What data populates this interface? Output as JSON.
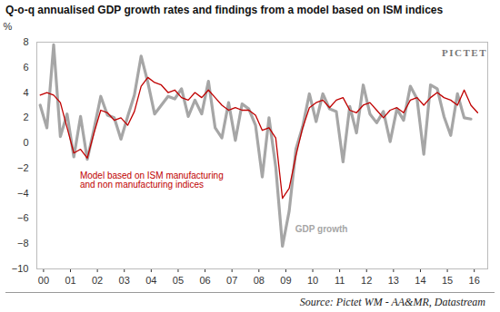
{
  "chart_data": {
    "type": "line",
    "title": "Q-o-q annualised GDP growth rates and findings from a model based on ISM indices",
    "logo": "PICTET",
    "source": "Source: Pictet WM - AA&MR, Datastream",
    "y_label": "%",
    "x": [
      1999.875,
      2000.125,
      2000.375,
      2000.625,
      2000.875,
      2001.125,
      2001.375,
      2001.625,
      2001.875,
      2002.125,
      2002.375,
      2002.625,
      2002.875,
      2003.125,
      2003.375,
      2003.625,
      2003.875,
      2004.125,
      2004.375,
      2004.625,
      2004.875,
      2005.125,
      2005.375,
      2005.625,
      2005.875,
      2006.125,
      2006.375,
      2006.625,
      2006.875,
      2007.125,
      2007.375,
      2007.625,
      2007.875,
      2008.125,
      2008.375,
      2008.625,
      2008.875,
      2009.125,
      2009.375,
      2009.625,
      2009.875,
      2010.125,
      2010.375,
      2010.625,
      2010.875,
      2011.125,
      2011.375,
      2011.625,
      2011.875,
      2012.125,
      2012.375,
      2012.625,
      2012.875,
      2013.125,
      2013.375,
      2013.625,
      2013.875,
      2014.125,
      2014.375,
      2014.625,
      2014.875,
      2015.125,
      2015.375,
      2015.625,
      2015.875,
      2016.125
    ],
    "series": [
      {
        "name": "GDP growth",
        "color": "#a6a6a6",
        "line_style": "solid",
        "values": [
          3.0,
          1.2,
          7.8,
          0.5,
          2.3,
          -1.1,
          2.1,
          -1.3,
          1.1,
          3.7,
          2.2,
          2.0,
          0.3,
          2.1,
          3.8,
          6.9,
          4.8,
          2.3,
          3.0,
          3.7,
          3.5,
          4.3,
          2.1,
          3.4,
          2.3,
          4.9,
          1.2,
          0.4,
          3.2,
          0.2,
          3.1,
          2.7,
          1.4,
          -2.7,
          2.0,
          -1.9,
          -8.2,
          -5.4,
          -0.5,
          1.3,
          3.9,
          1.7,
          3.9,
          2.7,
          2.5,
          -1.5,
          2.9,
          0.8,
          4.6,
          2.3,
          1.6,
          2.5,
          0.1,
          2.7,
          1.8,
          4.5,
          3.5,
          -0.9,
          4.6,
          4.3,
          2.1,
          0.6,
          3.9,
          2.0,
          1.9,
          null
        ]
      },
      {
        "name": "Model based on ISM manufacturing and non manufacturing indices",
        "color": "#c00000",
        "line_style": "solid",
        "values": [
          3.8,
          4.0,
          3.8,
          3.2,
          1.2,
          -0.8,
          -0.5,
          -1.2,
          0.8,
          2.6,
          2.4,
          1.8,
          2.0,
          1.4,
          2.5,
          4.5,
          5.2,
          4.8,
          4.6,
          4.0,
          4.2,
          3.6,
          3.4,
          4.0,
          3.6,
          4.2,
          3.6,
          3.0,
          2.6,
          2.8,
          2.6,
          2.6,
          2.2,
          1.0,
          1.2,
          0.4,
          -4.4,
          -3.6,
          -1.0,
          1.2,
          2.8,
          3.2,
          3.4,
          2.8,
          3.4,
          3.6,
          2.6,
          2.4,
          3.0,
          3.2,
          2.6,
          2.0,
          2.6,
          2.8,
          2.4,
          3.4,
          3.6,
          3.0,
          3.6,
          4.0,
          3.6,
          3.4,
          3.0,
          4.2,
          3.0,
          2.4
        ]
      }
    ],
    "xlim": [
      1999.75,
      2016.5
    ],
    "xticks": [
      {
        "value": 2000,
        "label": "00"
      },
      {
        "value": 2001,
        "label": "01"
      },
      {
        "value": 2002,
        "label": "02"
      },
      {
        "value": 2003,
        "label": "03"
      },
      {
        "value": 2004,
        "label": "04"
      },
      {
        "value": 2005,
        "label": "05"
      },
      {
        "value": 2006,
        "label": "06"
      },
      {
        "value": 2007,
        "label": "07"
      },
      {
        "value": 2008,
        "label": "08"
      },
      {
        "value": 2009,
        "label": "09"
      },
      {
        "value": 2010,
        "label": "10"
      },
      {
        "value": 2011,
        "label": "11"
      },
      {
        "value": 2012,
        "label": "12"
      },
      {
        "value": 2013,
        "label": "13"
      },
      {
        "value": 2014,
        "label": "14"
      },
      {
        "value": 2015,
        "label": "15"
      },
      {
        "value": 2016,
        "label": "16"
      }
    ],
    "ylim": [
      -10,
      8
    ],
    "yticks": [
      -10,
      -8,
      -6,
      -4,
      -2,
      0,
      2,
      4,
      6,
      8
    ],
    "grid": false
  }
}
